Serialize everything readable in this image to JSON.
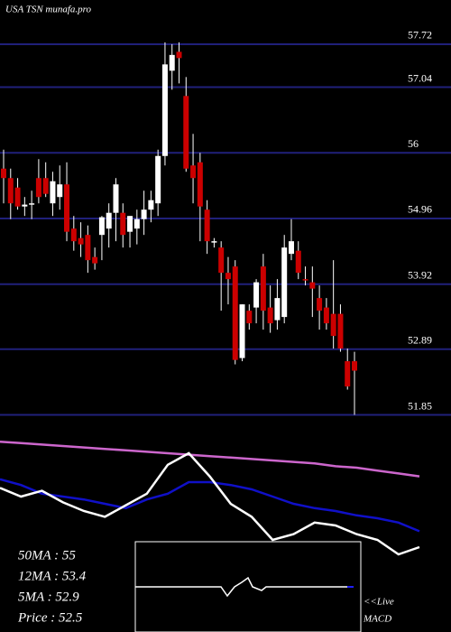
{
  "chart_data": [
    {
      "type": "candlestick",
      "title": "USA TSN munafa.pro",
      "ylim": [
        51.7,
        58.42
      ],
      "yticks": [
        57.72,
        57.04,
        56,
        54.96,
        53.92,
        52.89,
        51.85
      ],
      "grid": true,
      "up_color": "#ffffff",
      "down_color": "#cc0000",
      "grid_color": "#20207a",
      "open": [
        55.75,
        55.6,
        55.45,
        55.15,
        55.18,
        55.6,
        55.6,
        55.2,
        55.3,
        55.5,
        54.8,
        54.65,
        54.7,
        54.35,
        54.7,
        54.8,
        55.05,
        55.05,
        54.75,
        54.8,
        54.95,
        55.1,
        55.2,
        55.95,
        57.3,
        57.6,
        56.9,
        55.8,
        55.85,
        55.1,
        54.6,
        54.5,
        54.1,
        54.2,
        52.75,
        53.5,
        53.55,
        54.2,
        53.55,
        53.35,
        53.4,
        54.4,
        54.45,
        54.0,
        53.95,
        53.7,
        53.55,
        53.45,
        53.45,
        52.7,
        52.7
      ],
      "high": [
        56.05,
        55.75,
        55.6,
        55.3,
        55.4,
        55.9,
        55.85,
        55.7,
        55.8,
        55.85,
        55.0,
        54.9,
        54.85,
        54.5,
        55.0,
        55.2,
        55.6,
        55.2,
        55.0,
        55.1,
        55.4,
        55.4,
        56.05,
        57.75,
        57.72,
        57.75,
        57.2,
        56.3,
        56.0,
        55.25,
        54.65,
        54.6,
        54.35,
        54.3,
        53.6,
        53.6,
        54.0,
        54.4,
        53.9,
        54.0,
        54.7,
        54.95,
        54.6,
        54.2,
        54.2,
        53.9,
        53.7,
        54.3,
        53.6,
        52.9,
        52.85
      ],
      "low": [
        55.2,
        54.95,
        55.1,
        55.0,
        54.95,
        55.2,
        55.3,
        55.0,
        55.1,
        54.6,
        54.45,
        54.35,
        54.1,
        54.15,
        54.3,
        54.5,
        54.6,
        54.5,
        54.5,
        54.55,
        54.7,
        54.9,
        55.0,
        55.8,
        57.0,
        57.1,
        55.7,
        55.2,
        54.6,
        54.4,
        54.5,
        53.5,
        53.6,
        52.65,
        52.7,
        53.2,
        53.3,
        53.2,
        53.15,
        53.2,
        53.3,
        54.3,
        54.0,
        53.9,
        53.4,
        53.2,
        53.2,
        52.9,
        52.85,
        52.25,
        51.85
      ],
      "close": [
        55.6,
        55.2,
        55.15,
        55.18,
        55.2,
        55.3,
        55.35,
        55.55,
        55.5,
        54.75,
        54.6,
        54.55,
        54.3,
        54.25,
        54.98,
        55.05,
        55.5,
        54.7,
        55.0,
        54.95,
        55.1,
        55.25,
        55.95,
        57.4,
        57.55,
        57.5,
        55.75,
        55.6,
        55.15,
        54.6,
        54.6,
        54.1,
        54.0,
        52.72,
        53.6,
        53.3,
        53.95,
        53.5,
        53.3,
        53.7,
        54.5,
        54.6,
        54.1,
        53.98,
        53.85,
        53.5,
        53.3,
        53.1,
        52.9,
        52.3,
        52.55
      ]
    },
    {
      "type": "line",
      "ylim": [
        0,
        100
      ],
      "series": [
        {
          "color": "#cc66cc",
          "values": [
            88,
            87,
            86,
            85,
            84,
            83,
            82,
            81,
            80,
            79,
            78,
            77,
            76,
            75,
            74,
            73,
            71,
            70,
            68,
            66,
            64
          ]
        },
        {
          "color": "#1010c8",
          "values": [
            62,
            58,
            52,
            50,
            48,
            45,
            42,
            48,
            52,
            60,
            60,
            58,
            55,
            50,
            45,
            42,
            40,
            37,
            35,
            32,
            26
          ]
        },
        {
          "color": "#ffffff",
          "values": [
            56,
            50,
            54,
            46,
            40,
            36,
            44,
            52,
            72,
            80,
            64,
            45,
            36,
            20,
            24,
            32,
            30,
            24,
            20,
            10,
            15
          ]
        }
      ],
      "texts": [
        "50MA : 55",
        "12MA : 53.4",
        "5MA : 52.9",
        "Price : 52.5"
      ],
      "live": "<<Live",
      "macd": "MACD"
    }
  ]
}
